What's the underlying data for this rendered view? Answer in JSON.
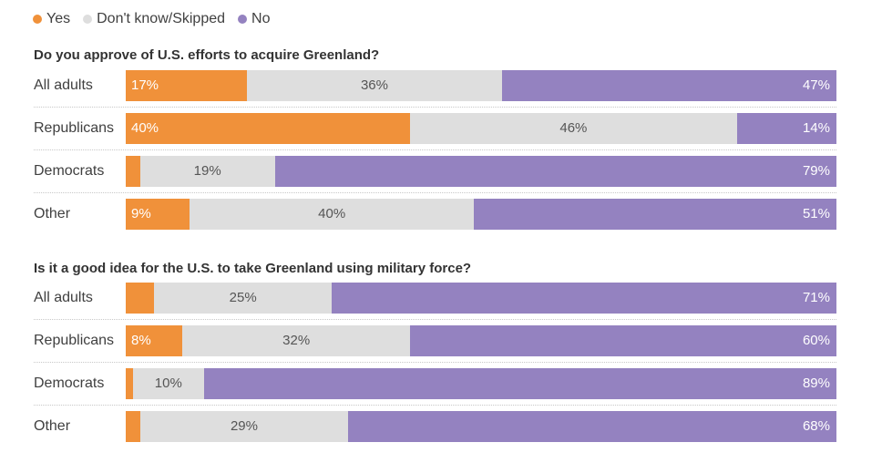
{
  "legend": {
    "yes": "Yes",
    "dk": "Don't know/Skipped",
    "no": "No"
  },
  "colors": {
    "yes": "#f0913a",
    "dk": "#dedede",
    "no": "#9482c0"
  },
  "chart_data": [
    {
      "type": "bar",
      "title": "Do you approve of U.S. efforts to acquire Greenland?",
      "orientation": "horizontal-stacked-100",
      "categories": [
        "All adults",
        "Republicans",
        "Democrats",
        "Other"
      ],
      "series": [
        {
          "name": "Yes",
          "values": [
            17,
            40,
            2,
            9
          ],
          "labels": [
            "17%",
            "40%",
            "",
            "9%"
          ]
        },
        {
          "name": "Don't know/Skipped",
          "values": [
            36,
            46,
            19,
            40
          ],
          "labels": [
            "36%",
            "46%",
            "19%",
            "40%"
          ]
        },
        {
          "name": "No",
          "values": [
            47,
            14,
            79,
            51
          ],
          "labels": [
            "47%",
            "14%",
            "79%",
            "51%"
          ]
        }
      ]
    },
    {
      "type": "bar",
      "title": "Is it a good idea for the U.S. to take Greenland using military force?",
      "orientation": "horizontal-stacked-100",
      "categories": [
        "All adults",
        "Republicans",
        "Democrats",
        "Other"
      ],
      "series": [
        {
          "name": "Yes",
          "values": [
            4,
            8,
            1,
            2
          ],
          "labels": [
            "",
            "8%",
            "",
            ""
          ]
        },
        {
          "name": "Don't know/Skipped",
          "values": [
            25,
            32,
            10,
            29
          ],
          "labels": [
            "25%",
            "32%",
            "10%",
            "29%"
          ]
        },
        {
          "name": "No",
          "values": [
            71,
            60,
            89,
            68
          ],
          "labels": [
            "71%",
            "60%",
            "89%",
            "68%"
          ]
        }
      ]
    }
  ]
}
